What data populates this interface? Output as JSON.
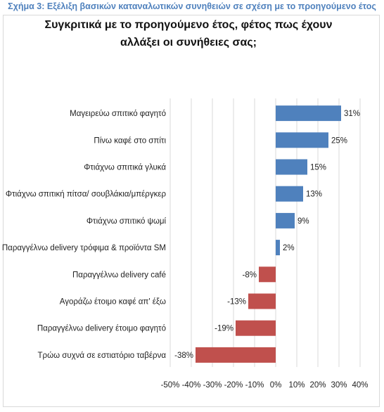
{
  "caption": "Σχήμα 3: Εξέλιξη βασικών καταναλωτικών συνηθειών σε σχέση με το προηγούμενο έτος",
  "chart_data": {
    "type": "bar",
    "orientation": "horizontal",
    "title": "Συγκριτικά με το προηγούμενο έτος, φέτος πως έχουν αλλάξει οι συνήθειες σας;",
    "categories": [
      "Μαγειρεύω σπιτικό φαγητό",
      "Πίνω καφέ στο σπίτι",
      "Φτιάχνω σπιτικά γλυκά",
      "Φτιάχνω σπιτική πίτσα/ σουβλάκια/μπέργκερ",
      "Φτιάχνω σπιτικό ψωμί",
      "Παραγγέλνω delivery τρόφιμα & προϊόντα SM",
      "Παραγγέλνω delivery café",
      "Αγοράζω έτοιμο καφέ απ' έξω",
      "Παραγγέλνω delivery έτοιμο φαγητό",
      "Τρώω συχνά σε εστιατόριο ταβέρνα"
    ],
    "values": [
      31,
      25,
      15,
      13,
      9,
      2,
      -8,
      -13,
      -19,
      -38
    ],
    "data_labels": [
      "31%",
      "25%",
      "15%",
      "13%",
      "9%",
      "2%",
      "-8%",
      "-13%",
      "-19%",
      "-38%"
    ],
    "xlim": [
      -50,
      40
    ],
    "x_ticks": [
      -50,
      -40,
      -30,
      -20,
      -10,
      0,
      10,
      20,
      30,
      40
    ],
    "x_tick_labels": [
      "-50%",
      "-40%",
      "-30%",
      "-20%",
      "-10%",
      "0%",
      "10%",
      "20%",
      "30%",
      "40%"
    ],
    "xlabel": "",
    "ylabel": "",
    "grid": "vertical",
    "legend": "none",
    "colors": {
      "positive": "#4f81bd",
      "negative": "#c0504d",
      "grid": "#d9d9d9",
      "caption": "#4f81bd"
    }
  }
}
